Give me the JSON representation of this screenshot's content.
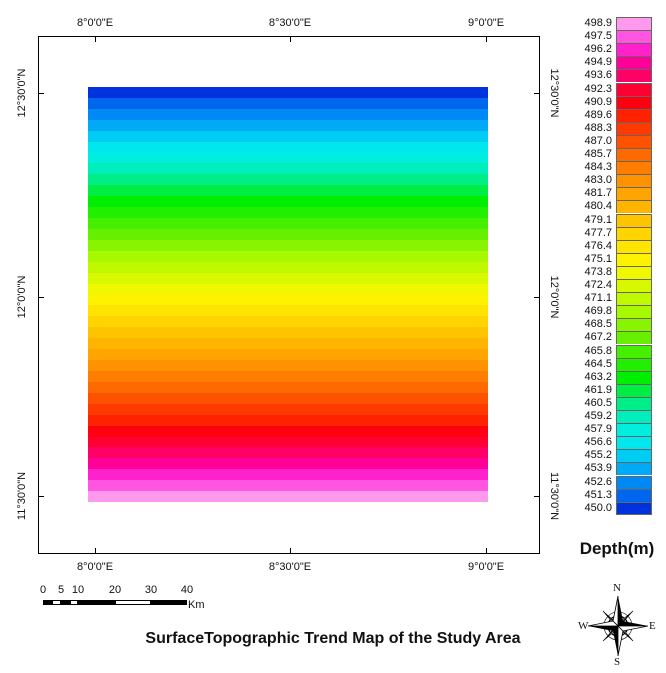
{
  "map": {
    "title": "SurfaceTopographic Trend Map of the Study Area",
    "lon_labels": [
      "8°0'0\"E",
      "8°30'0\"E",
      "9°0'0\"E"
    ],
    "lat_labels": [
      "12°30'0\"N",
      "12°0'0\"N",
      "11°30'0\"N"
    ]
  },
  "legend": {
    "title": "Depth(m)",
    "values": [
      "498.9",
      "497.5",
      "496.2",
      "494.9",
      "493.6",
      "492.3",
      "490.9",
      "489.6",
      "488.3",
      "487.0",
      "485.7",
      "484.3",
      "483.0",
      "481.7",
      "480.4",
      "479.1",
      "477.7",
      "476.4",
      "475.1",
      "473.8",
      "472.4",
      "471.1",
      "469.8",
      "468.5",
      "467.2",
      "465.8",
      "464.5",
      "463.2",
      "461.9",
      "460.5",
      "459.2",
      "457.9",
      "456.6",
      "455.2",
      "453.9",
      "452.6",
      "451.3",
      "450.0"
    ],
    "colors": [
      "#ff99ee",
      "#ff55e0",
      "#ff22cc",
      "#ff0099",
      "#ff0066",
      "#ff0033",
      "#ff0010",
      "#ff2200",
      "#ff3a00",
      "#ff5200",
      "#ff6a00",
      "#ff7e00",
      "#ff9200",
      "#ffa400",
      "#ffb400",
      "#ffc400",
      "#ffd400",
      "#ffe400",
      "#fff200",
      "#f0f800",
      "#d8f800",
      "#c0f800",
      "#a8f800",
      "#88f400",
      "#66f000",
      "#44f000",
      "#22ee00",
      "#00ee00",
      "#00ee44",
      "#00ee88",
      "#00eebb",
      "#00eedd",
      "#00e8ee",
      "#00ccf4",
      "#00aaf6",
      "#0088f4",
      "#0066ee",
      "#0033dd"
    ]
  },
  "scale_bar": {
    "numbers": [
      "0",
      "5",
      "10",
      "20",
      "30",
      "40"
    ],
    "unit": "Km"
  },
  "compass": {
    "n": "N",
    "e": "E",
    "s": "S",
    "w": "W"
  }
}
